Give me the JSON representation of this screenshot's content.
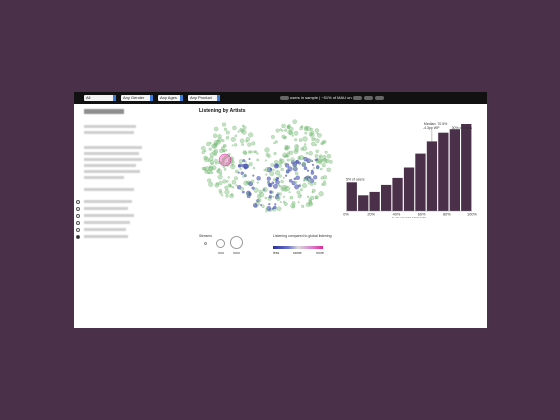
{
  "filters": {
    "all": "All",
    "gender": "Any Gender",
    "age": "Any Ages",
    "product": "Any Product"
  },
  "sample_text": "users in sample | ~51% of MAU on",
  "scatter": {
    "title": "Listening by Artists",
    "legend_streams": "Streams",
    "legend_color": "Listening compared to global listening",
    "scale_less": "less",
    "scale_same": "same",
    "scale_more": "more",
    "colors": {
      "green": "#7fbf7f",
      "blue": "#4a55b0",
      "pink": "#e0299c"
    }
  },
  "chart_data": {
    "type": "bar",
    "categories": [
      "0%",
      "10%",
      "20%",
      "30%",
      "40%",
      "50%",
      "60%",
      "70%",
      "80%",
      "90%",
      "100%"
    ],
    "values": [
      33,
      18,
      22,
      30,
      38,
      50,
      66,
      80,
      90,
      94,
      100
    ],
    "x_ticks": [
      "0%",
      "20%",
      "40%",
      "60%",
      "80%",
      "100%"
    ],
    "xlabel": "% OF MAJOR STREAMS",
    "annotations": {
      "left": "5% of users",
      "median": "Median: 70.5%",
      "median_sub": "-4.3pp WP",
      "right": "30% of users"
    },
    "bar_color": "#4a3049"
  }
}
